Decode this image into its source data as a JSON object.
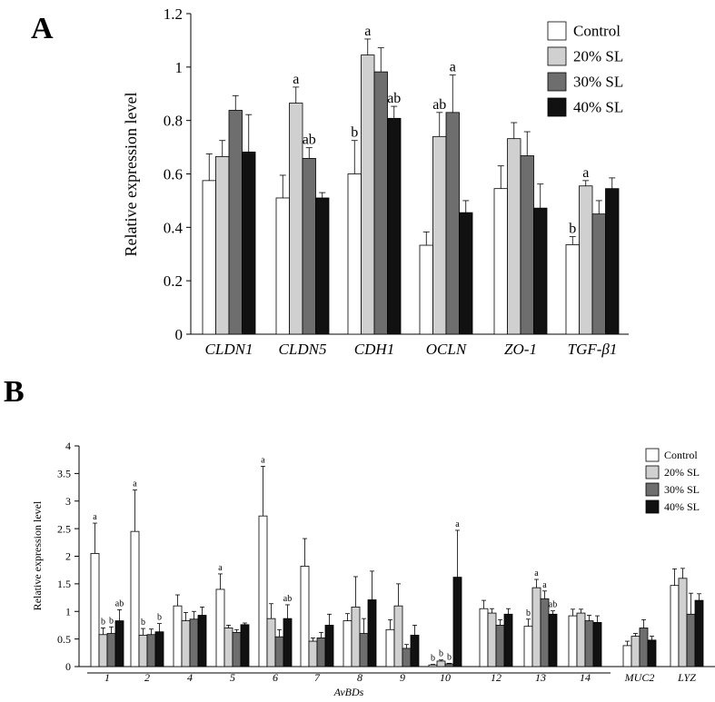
{
  "panels": [
    {
      "label": "A",
      "chart_data": {
        "type": "bar",
        "ylabel": "Relative expression level",
        "ylim": [
          0,
          1.2
        ],
        "yticks": [
          "0",
          "0.2",
          "0.4",
          "0.6",
          "0.8",
          "1",
          "1.2"
        ],
        "categories": [
          "CLDN1",
          "CLDN5",
          "CDH1",
          "OCLN",
          "ZO-1",
          "TGF-β1"
        ],
        "series": [
          {
            "name": "Control",
            "color": "#ffffff",
            "values": [
              0.575,
              0.51,
              0.6,
              0.333,
              0.545,
              0.335
            ],
            "errors": [
              0.1,
              0.085,
              0.125,
              0.05,
              0.085,
              0.03
            ],
            "letters": [
              "",
              "",
              "b",
              "",
              "",
              "b"
            ]
          },
          {
            "name": "20% SL",
            "color": "#d0d0d0",
            "values": [
              0.665,
              0.865,
              1.045,
              0.74,
              0.732,
              0.555
            ],
            "errors": [
              0.06,
              0.06,
              0.06,
              0.09,
              0.06,
              0.02
            ],
            "letters": [
              "",
              "a",
              "a",
              "ab",
              "",
              "a"
            ]
          },
          {
            "name": "30% SL",
            "color": "#6e6e6e",
            "values": [
              0.838,
              0.658,
              0.982,
              0.83,
              0.668,
              0.45
            ],
            "errors": [
              0.055,
              0.04,
              0.09,
              0.14,
              0.09,
              0.05
            ],
            "letters": [
              "",
              "ab",
              "",
              "a",
              "",
              ""
            ]
          },
          {
            "name": "40% SL",
            "color": "#111111",
            "values": [
              0.682,
              0.51,
              0.808,
              0.455,
              0.472,
              0.545
            ],
            "errors": [
              0.14,
              0.02,
              0.045,
              0.045,
              0.09,
              0.04
            ],
            "letters": [
              "",
              "",
              "ab",
              "",
              "",
              ""
            ]
          }
        ]
      }
    },
    {
      "label": "B",
      "chart_data": {
        "type": "bar",
        "ylabel": "Relative expression level",
        "ylim": [
          0,
          4
        ],
        "yticks": [
          "0",
          "0.5",
          "1",
          "1.5",
          "2",
          "2.5",
          "3",
          "3.5",
          "4"
        ],
        "categories": [
          "1",
          "2",
          "4",
          "5",
          "6",
          "7",
          "8",
          "9",
          "10",
          "12",
          "13",
          "14",
          "MUC2",
          "LYZ"
        ],
        "group_label": "AvBDs",
        "series": [
          {
            "name": "Control",
            "color": "#ffffff",
            "values": [
              2.05,
              2.45,
              1.1,
              1.4,
              2.73,
              1.82,
              0.83,
              0.67,
              0.03,
              1.05,
              0.73,
              0.92,
              0.38,
              1.47
            ],
            "errors": [
              0.55,
              0.75,
              0.2,
              0.28,
              0.9,
              0.5,
              0.13,
              0.18,
              0.01,
              0.15,
              0.13,
              0.12,
              0.08,
              0.3
            ],
            "letters": [
              "a",
              "a",
              "",
              "a",
              "a",
              "",
              "",
              "",
              "b",
              "",
              "b",
              "",
              "",
              ""
            ]
          },
          {
            "name": "20% SL",
            "color": "#d0d0d0",
            "values": [
              0.58,
              0.57,
              0.83,
              0.7,
              0.87,
              0.46,
              1.08,
              1.1,
              0.1,
              0.97,
              1.43,
              0.97,
              0.55,
              1.6
            ],
            "errors": [
              0.12,
              0.12,
              0.15,
              0.05,
              0.27,
              0.06,
              0.55,
              0.4,
              0.02,
              0.08,
              0.15,
              0.07,
              0.05,
              0.18
            ],
            "letters": [
              "b",
              "b",
              "",
              "",
              "",
              "",
              "",
              "",
              "b",
              "",
              "a",
              "",
              "",
              ""
            ]
          },
          {
            "name": "30% SL",
            "color": "#6e6e6e",
            "values": [
              0.6,
              0.58,
              0.86,
              0.62,
              0.54,
              0.52,
              0.6,
              0.33,
              0.05,
              0.75,
              1.23,
              0.83,
              0.7,
              0.95
            ],
            "errors": [
              0.12,
              0.1,
              0.14,
              0.05,
              0.13,
              0.1,
              0.27,
              0.07,
              0.01,
              0.1,
              0.14,
              0.1,
              0.15,
              0.38
            ],
            "letters": [
              "b",
              "",
              "",
              "",
              "",
              "",
              "",
              "",
              "b",
              "",
              "a",
              "",
              "",
              ""
            ]
          },
          {
            "name": "40% SL",
            "color": "#111111",
            "values": [
              0.83,
              0.63,
              0.93,
              0.76,
              0.87,
              0.75,
              1.21,
              0.57,
              1.62,
              0.95,
              0.95,
              0.8,
              0.48,
              1.2
            ],
            "errors": [
              0.2,
              0.15,
              0.15,
              0.03,
              0.25,
              0.2,
              0.52,
              0.18,
              0.85,
              0.1,
              0.06,
              0.12,
              0.07,
              0.12
            ],
            "letters": [
              "ab",
              "b",
              "",
              "",
              "ab",
              "",
              "",
              "",
              "a",
              "",
              "ab",
              "",
              "",
              ""
            ]
          }
        ]
      }
    }
  ]
}
